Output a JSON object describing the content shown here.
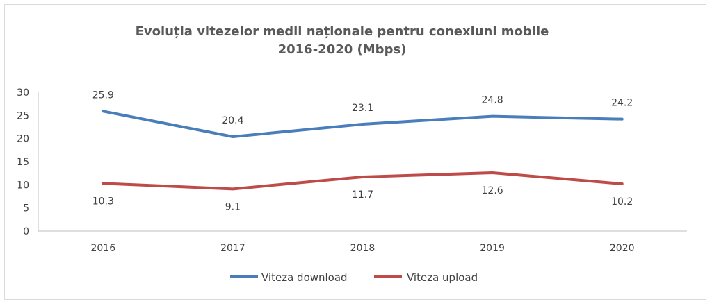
{
  "chart_data": {
    "type": "line",
    "title_line1": "Evoluția vitezelor medii naționale pentru conexiuni mobile",
    "title_line2": "2016-2020 (Mbps)",
    "categories": [
      "2016",
      "2017",
      "2018",
      "2019",
      "2020"
    ],
    "ylim": [
      0,
      30
    ],
    "yticks": [
      0,
      5,
      10,
      15,
      20,
      25,
      30
    ],
    "grid": false,
    "legend_position": "bottom",
    "series": [
      {
        "name": "Viteza download",
        "color": "#4a7ebb",
        "values": [
          25.9,
          20.4,
          23.1,
          24.8,
          24.2
        ],
        "label_position": "above"
      },
      {
        "name": "Viteza upload",
        "color": "#be4b48",
        "values": [
          10.3,
          9.1,
          11.7,
          12.6,
          10.2
        ],
        "label_position": "below"
      }
    ]
  }
}
